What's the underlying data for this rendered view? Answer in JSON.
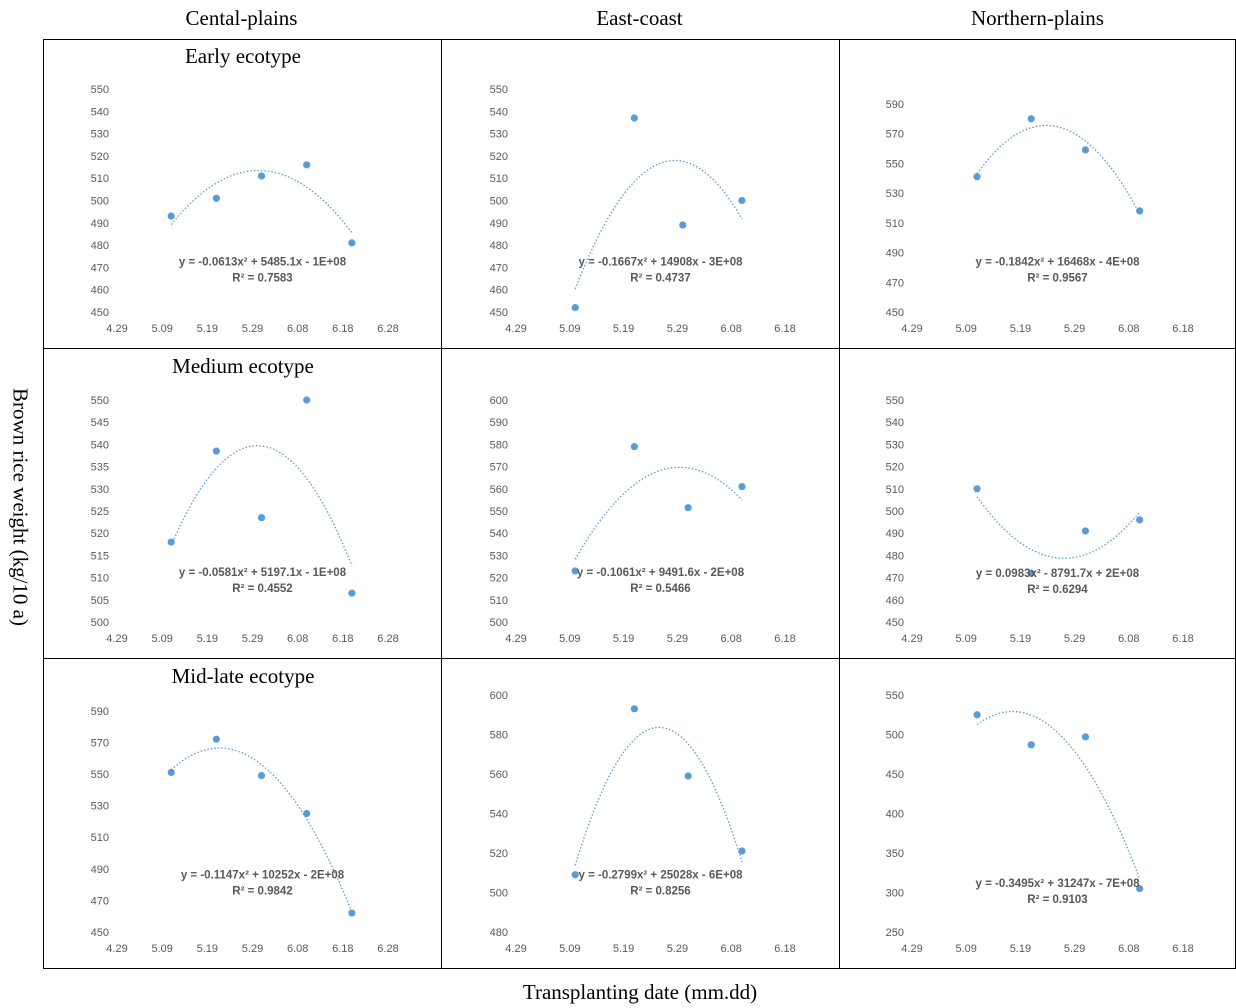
{
  "columns": [
    "Cental-plains",
    "East-coast",
    "Northern-plains"
  ],
  "rows": [
    "Early ecotype",
    "Medium ecotype",
    "Mid-late ecotype"
  ],
  "y_axis_label": "Brown rice weight (kg/10 a)",
  "x_axis_label": "Transplanting date (mm.dd)",
  "colors": {
    "marker": "#5b9bd5",
    "trend": "#5b9bd5",
    "tick_text": "#595959",
    "border": "#000000"
  },
  "chart_data": [
    {
      "id": "cp-early",
      "type": "scatter",
      "column": "Cental-plains",
      "row": "Early ecotype",
      "x_ticks": [
        "4.29",
        "5.09",
        "5.19",
        "5.29",
        "6.08",
        "6.18",
        "6.28"
      ],
      "ylim": [
        450,
        550
      ],
      "y_ticks": [
        450,
        460,
        470,
        480,
        490,
        500,
        510,
        520,
        530,
        540,
        550
      ],
      "points": [
        {
          "x": "5.11",
          "y": 493
        },
        {
          "x": "5.21",
          "y": 501
        },
        {
          "x": "5.31",
          "y": 511
        },
        {
          "x": "6.10",
          "y": 516
        },
        {
          "x": "6.20",
          "y": 481
        }
      ],
      "trendline": "polynomial-2",
      "equation": "y = -0.0613x² + 5485.1x - 1E+08",
      "r2": "R² = 0.7583"
    },
    {
      "id": "ec-early",
      "type": "scatter",
      "column": "East-coast",
      "row": "Early ecotype",
      "x_ticks": [
        "4.29",
        "5.09",
        "5.19",
        "5.29",
        "6.08",
        "6.18"
      ],
      "ylim": [
        450,
        550
      ],
      "y_ticks": [
        450,
        460,
        470,
        480,
        490,
        500,
        510,
        520,
        530,
        540,
        550
      ],
      "points": [
        {
          "x": "5.10",
          "y": 452
        },
        {
          "x": "5.21",
          "y": 537
        },
        {
          "x": "5.30",
          "y": 489
        },
        {
          "x": "6.10",
          "y": 500
        }
      ],
      "trendline": "polynomial-2",
      "equation": "y = -0.1667x² + 14908x - 3E+08",
      "r2": "R² = 0.4737"
    },
    {
      "id": "np-early",
      "type": "scatter",
      "column": "Northern-plains",
      "row": "Early ecotype",
      "x_ticks": [
        "4.29",
        "5.09",
        "5.19",
        "5.29",
        "6.08",
        "6.18"
      ],
      "ylim": [
        450,
        600
      ],
      "y_ticks": [
        450,
        470,
        490,
        510,
        530,
        550,
        570,
        590
      ],
      "points": [
        {
          "x": "5.11",
          "y": 541
        },
        {
          "x": "5.21",
          "y": 580
        },
        {
          "x": "5.31",
          "y": 559
        },
        {
          "x": "6.10",
          "y": 518
        }
      ],
      "trendline": "polynomial-2",
      "equation": "y = -0.1842x² + 16468x - 4E+08",
      "r2": "R² = 0.9567"
    },
    {
      "id": "cp-medium",
      "type": "scatter",
      "column": "Cental-plains",
      "row": "Medium ecotype",
      "x_ticks": [
        "4.29",
        "5.09",
        "5.19",
        "5.29",
        "6.08",
        "6.18",
        "6.28"
      ],
      "ylim": [
        500,
        550
      ],
      "y_ticks": [
        500,
        505,
        510,
        515,
        520,
        525,
        530,
        535,
        540,
        545,
        550
      ],
      "points": [
        {
          "x": "5.11",
          "y": 518
        },
        {
          "x": "5.21",
          "y": 538.5
        },
        {
          "x": "5.31",
          "y": 523.5
        },
        {
          "x": "6.10",
          "y": 550
        },
        {
          "x": "6.20",
          "y": 506.5
        }
      ],
      "trendline": "polynomial-2",
      "equation": "y = -0.0581x² + 5197.1x - 1E+08",
      "r2": "R² = 0.4552"
    },
    {
      "id": "ec-medium",
      "type": "scatter",
      "column": "East-coast",
      "row": "Medium ecotype",
      "x_ticks": [
        "4.29",
        "5.09",
        "5.19",
        "5.29",
        "6.08",
        "6.18"
      ],
      "ylim": [
        500,
        600
      ],
      "y_ticks": [
        500,
        510,
        520,
        530,
        540,
        550,
        560,
        570,
        580,
        590,
        600
      ],
      "points": [
        {
          "x": "5.10",
          "y": 523
        },
        {
          "x": "5.21",
          "y": 579
        },
        {
          "x": "5.31",
          "y": 551.5
        },
        {
          "x": "6.10",
          "y": 561
        }
      ],
      "trendline": "polynomial-2",
      "equation": "y = -0.1061x² + 9491.6x - 2E+08",
      "r2": "R² = 0.5466"
    },
    {
      "id": "np-medium",
      "type": "scatter",
      "column": "Northern-plains",
      "row": "Medium ecotype",
      "x_ticks": [
        "4.29",
        "5.09",
        "5.19",
        "5.29",
        "6.08",
        "6.18"
      ],
      "ylim": [
        450,
        550
      ],
      "y_ticks": [
        450,
        460,
        470,
        480,
        490,
        500,
        510,
        520,
        530,
        540,
        550
      ],
      "points": [
        {
          "x": "5.11",
          "y": 510
        },
        {
          "x": "5.21",
          "y": 472
        },
        {
          "x": "5.31",
          "y": 491
        },
        {
          "x": "6.10",
          "y": 496
        }
      ],
      "trendline": "polynomial-2",
      "equation": "y = 0.0983x² - 8791.7x + 2E+08",
      "r2": "R² = 0.6294"
    },
    {
      "id": "cp-midlate",
      "type": "scatter",
      "column": "Cental-plains",
      "row": "Mid-late ecotype",
      "x_ticks": [
        "4.29",
        "5.09",
        "5.19",
        "5.29",
        "6.08",
        "6.18",
        "6.28"
      ],
      "ylim": [
        450,
        600
      ],
      "y_ticks": [
        450,
        470,
        490,
        510,
        530,
        550,
        570,
        590
      ],
      "points": [
        {
          "x": "5.11",
          "y": 551
        },
        {
          "x": "5.21",
          "y": 572
        },
        {
          "x": "5.31",
          "y": 549
        },
        {
          "x": "6.10",
          "y": 525
        },
        {
          "x": "6.20",
          "y": 462
        }
      ],
      "trendline": "polynomial-2",
      "equation": "y = -0.1147x² + 10252x - 2E+08",
      "r2": "R² = 0.9842"
    },
    {
      "id": "ec-midlate",
      "type": "scatter",
      "column": "East-coast",
      "row": "Mid-late ecotype",
      "x_ticks": [
        "4.29",
        "5.09",
        "5.19",
        "5.29",
        "6.08",
        "6.18"
      ],
      "ylim": [
        480,
        600
      ],
      "y_ticks": [
        480,
        500,
        520,
        540,
        560,
        580,
        600
      ],
      "points": [
        {
          "x": "5.10",
          "y": 509
        },
        {
          "x": "5.21",
          "y": 593
        },
        {
          "x": "5.31",
          "y": 559
        },
        {
          "x": "6.10",
          "y": 521
        }
      ],
      "trendline": "polynomial-2",
      "equation": "y = -0.2799x² + 25028x - 6E+08",
      "r2": "R² = 0.8256"
    },
    {
      "id": "np-midlate",
      "type": "scatter",
      "column": "Northern-plains",
      "row": "Mid-late ecotype",
      "x_ticks": [
        "4.29",
        "5.09",
        "5.19",
        "5.29",
        "6.08",
        "6.18"
      ],
      "ylim": [
        250,
        550
      ],
      "y_ticks": [
        250,
        300,
        350,
        400,
        450,
        500,
        550
      ],
      "points": [
        {
          "x": "5.11",
          "y": 525
        },
        {
          "x": "5.21",
          "y": 487
        },
        {
          "x": "5.31",
          "y": 497
        },
        {
          "x": "6.10",
          "y": 305
        }
      ],
      "trendline": "polynomial-2",
      "equation": "y = -0.3495x² + 31247x - 7E+08",
      "r2": "R² = 0.9103"
    }
  ]
}
